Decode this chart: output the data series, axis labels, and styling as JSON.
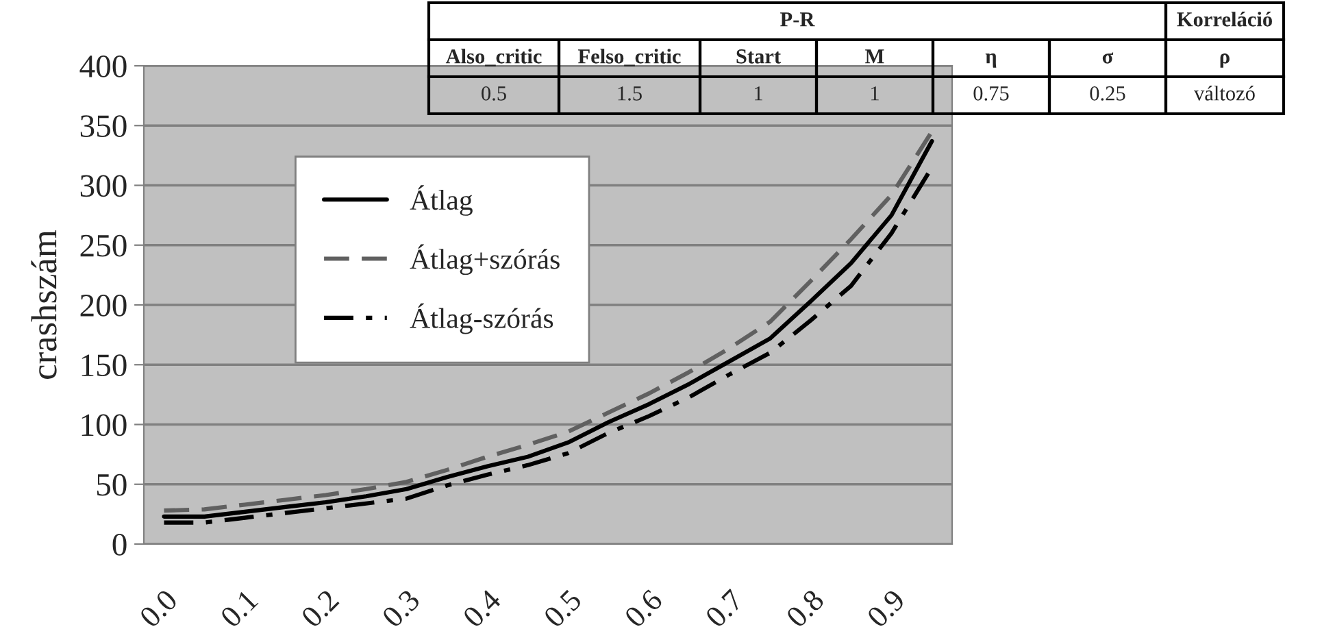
{
  "chart_data": {
    "type": "line",
    "ylabel": "crashszám",
    "categories": [
      "0.0",
      null,
      "0.1",
      null,
      "0.2",
      null,
      "0.3",
      null,
      "0.4",
      null,
      "0.5",
      null,
      "0.6",
      null,
      "0.7",
      null,
      "0.8",
      null,
      "0.9",
      null
    ],
    "series": [
      {
        "name": "Átlag",
        "color": "#000000",
        "line_style": "solid",
        "values": [
          23,
          23,
          27,
          31,
          35,
          40,
          46,
          56,
          65,
          73,
          85,
          102,
          117,
          134,
          153,
          172,
          203,
          235,
          275,
          337
        ]
      },
      {
        "name": "Átlag+szórás",
        "color": "#606060",
        "line_style": "dashed",
        "values": [
          28,
          29,
          33,
          37,
          41,
          46,
          52,
          62,
          73,
          83,
          94,
          110,
          126,
          144,
          164,
          186,
          220,
          255,
          292,
          345
        ]
      },
      {
        "name": "Átlag-szórás",
        "color": "#000000",
        "line_style": "dashdot",
        "values": [
          18,
          18,
          22,
          26,
          30,
          34,
          38,
          49,
          58,
          66,
          76,
          93,
          107,
          123,
          142,
          160,
          187,
          216,
          260,
          315
        ]
      }
    ],
    "ylim": [
      0,
      400
    ],
    "yticks": [
      0,
      50,
      100,
      150,
      200,
      250,
      300,
      350,
      400
    ],
    "grid": "y",
    "legend": "top left",
    "marker": "none",
    "annotations": [
      "P-R",
      "Korreláció",
      "Also_critic",
      "Felso_critic",
      "Start",
      "M",
      "η",
      "σ",
      "ρ",
      "0.5",
      "1.5",
      "1",
      "1",
      "0.75",
      "0.25",
      "változó"
    ]
  }
}
